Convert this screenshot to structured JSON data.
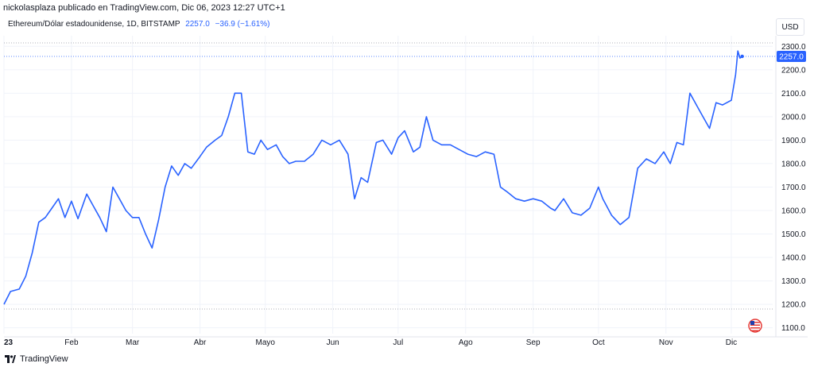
{
  "header": {
    "caption": "nickolasplaza publicado en TradingView.com, Dic 06, 2023 12:27 UTC+1",
    "symbol": "Ethereum/Dólar estadounidense, 1D, BITSTAMP",
    "price": "2257.0",
    "change": "−36.9 (−1.61%)",
    "currency": "USD"
  },
  "brand": {
    "label": "TradingView"
  },
  "colors": {
    "line": "#2962ff",
    "grid": "#f0f3fa",
    "axis": "#e0e3eb",
    "accent": "#2962ff"
  },
  "chart_data": {
    "type": "line",
    "title": "",
    "xlabel": "",
    "ylabel": "",
    "ylim": [
      1075,
      2345
    ],
    "y_ticks": [
      1100,
      1200,
      1300,
      1400,
      1500,
      1600,
      1700,
      1800,
      1900,
      2000,
      2100,
      2200,
      2300
    ],
    "x_ticks": [
      "23",
      "Feb",
      "Mar",
      "Abr",
      "Mayo",
      "Jun",
      "Jul",
      "Ago",
      "Sep",
      "Oct",
      "Nov",
      "Dic"
    ],
    "last_value_label": "2257.0",
    "series": [
      {
        "x": [
          "2023-01-01",
          "2023-01-04",
          "2023-01-08",
          "2023-01-11",
          "2023-01-14",
          "2023-01-17",
          "2023-01-20",
          "2023-01-23",
          "2023-01-26",
          "2023-01-29",
          "2023-02-01",
          "2023-02-04",
          "2023-02-08",
          "2023-02-11",
          "2023-02-14",
          "2023-02-17",
          "2023-02-20",
          "2023-02-23",
          "2023-02-26",
          "2023-03-01",
          "2023-03-04",
          "2023-03-07",
          "2023-03-10",
          "2023-03-13",
          "2023-03-16",
          "2023-03-19",
          "2023-03-22",
          "2023-03-25",
          "2023-03-28",
          "2023-04-01",
          "2023-04-04",
          "2023-04-08",
          "2023-04-11",
          "2023-04-14",
          "2023-04-17",
          "2023-04-20",
          "2023-04-23",
          "2023-04-26",
          "2023-04-29",
          "2023-05-02",
          "2023-05-06",
          "2023-05-09",
          "2023-05-12",
          "2023-05-15",
          "2023-05-19",
          "2023-05-23",
          "2023-05-27",
          "2023-05-31",
          "2023-06-04",
          "2023-06-08",
          "2023-06-11",
          "2023-06-14",
          "2023-06-17",
          "2023-06-21",
          "2023-06-24",
          "2023-06-28",
          "2023-07-01",
          "2023-07-04",
          "2023-07-08",
          "2023-07-11",
          "2023-07-14",
          "2023-07-17",
          "2023-07-21",
          "2023-07-25",
          "2023-07-29",
          "2023-08-02",
          "2023-08-06",
          "2023-08-10",
          "2023-08-14",
          "2023-08-17",
          "2023-08-20",
          "2023-08-24",
          "2023-08-28",
          "2023-09-01",
          "2023-09-05",
          "2023-09-09",
          "2023-09-11",
          "2023-09-15",
          "2023-09-19",
          "2023-09-23",
          "2023-09-27",
          "2023-10-01",
          "2023-10-03",
          "2023-10-07",
          "2023-10-11",
          "2023-10-15",
          "2023-10-19",
          "2023-10-23",
          "2023-10-27",
          "2023-10-31",
          "2023-11-03",
          "2023-11-06",
          "2023-11-09",
          "2023-11-12",
          "2023-11-15",
          "2023-11-18",
          "2023-11-21",
          "2023-11-24",
          "2023-11-27",
          "2023-12-01",
          "2023-12-03",
          "2023-12-04",
          "2023-12-05",
          "2023-12-06"
        ],
        "values": [
          1200,
          1255,
          1265,
          1320,
          1420,
          1550,
          1570,
          1610,
          1650,
          1570,
          1640,
          1565,
          1670,
          1620,
          1570,
          1510,
          1700,
          1650,
          1600,
          1570,
          1570,
          1500,
          1440,
          1560,
          1700,
          1790,
          1750,
          1800,
          1780,
          1830,
          1870,
          1900,
          1920,
          2000,
          2100,
          2100,
          1850,
          1840,
          1900,
          1860,
          1880,
          1830,
          1800,
          1810,
          1810,
          1840,
          1900,
          1880,
          1900,
          1840,
          1650,
          1740,
          1720,
          1890,
          1900,
          1840,
          1910,
          1940,
          1850,
          1870,
          2000,
          1900,
          1880,
          1880,
          1860,
          1840,
          1830,
          1850,
          1840,
          1700,
          1680,
          1650,
          1640,
          1650,
          1640,
          1610,
          1600,
          1650,
          1590,
          1580,
          1610,
          1700,
          1650,
          1580,
          1540,
          1570,
          1780,
          1820,
          1800,
          1850,
          1800,
          1890,
          1880,
          2100,
          2050,
          2000,
          1950,
          2060,
          2050,
          2070,
          2180,
          2280,
          2250,
          2257
        ]
      }
    ]
  }
}
